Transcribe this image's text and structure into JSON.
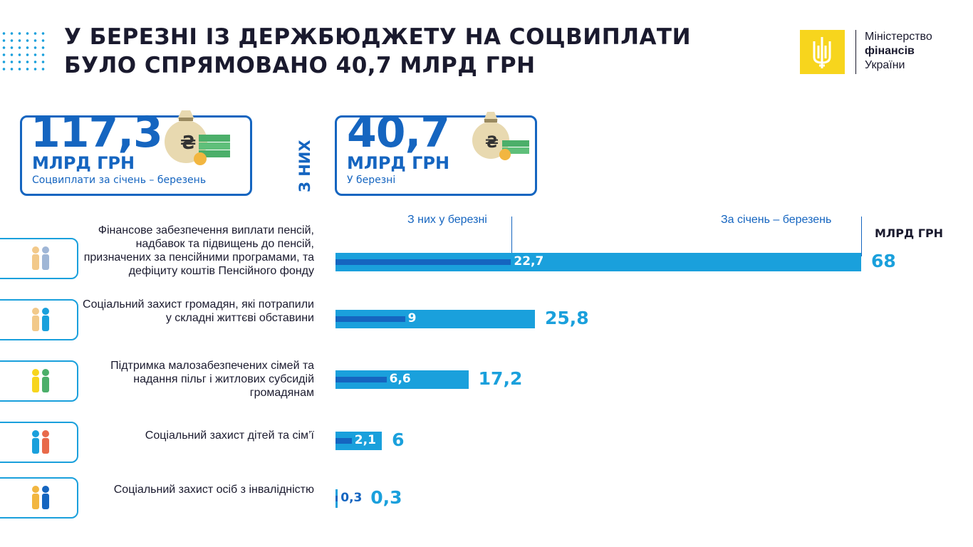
{
  "header": {
    "title_line1": "У БЕРЕЗНІ ІЗ ДЕРЖБЮДЖЕТУ НА СОЦВИПЛАТИ",
    "title_line2": "БУЛО СПРЯМОВАНО 40,7 МЛРД ГРН"
  },
  "logo": {
    "line1": "Міністерство",
    "line2": "фінансів",
    "line3": "України"
  },
  "cards": {
    "total": {
      "value": "117,3",
      "unit": "МЛРД ГРН",
      "caption": "Соцвиплати за січень – березень"
    },
    "connector": "З НИХ",
    "march": {
      "value": "40,7",
      "unit": "МЛРД ГРН",
      "caption": "У березні"
    }
  },
  "colors": {
    "total_bar": "#1aa0dc",
    "march_bar": "#1565c0",
    "accent_yellow": "#f7d51d"
  },
  "chart_data": {
    "type": "bar",
    "orientation": "horizontal",
    "unit_label": "МЛРД ГРН",
    "column_headers": {
      "march": "З них у березні",
      "total": "За січень – березень"
    },
    "categories": [
      "Фінансове забезпечення виплати пенсій, надбавок та підвищень до пенсій, призначених за пенсійними програмами, та дефіциту коштів Пенсійного фонду",
      "Соціальний захист громадян, які потрапили у складні життєві обставини",
      "Підтримка малозабезпечених сімей та надання пільг і житлових субсидій громадянам",
      "Соціальний захист дітей та сім’ї",
      "Соціальний захист осіб з інвалідністю"
    ],
    "icons": [
      "elderly-couple-icon",
      "people-icon",
      "money-lightbulb-icon",
      "family-icon",
      "wheelchair-icon"
    ],
    "series": [
      {
        "name": "З них у березні",
        "values": [
          22.7,
          9,
          6.6,
          2.1,
          0.3
        ],
        "labels": [
          "22,7",
          "9",
          "6,6",
          "2,1",
          "0,3"
        ]
      },
      {
        "name": "За січень – березень",
        "values": [
          68,
          25.8,
          17.2,
          6,
          0.3
        ],
        "labels": [
          "68",
          "25,8",
          "17,2",
          "6",
          "0,3"
        ]
      }
    ]
  }
}
